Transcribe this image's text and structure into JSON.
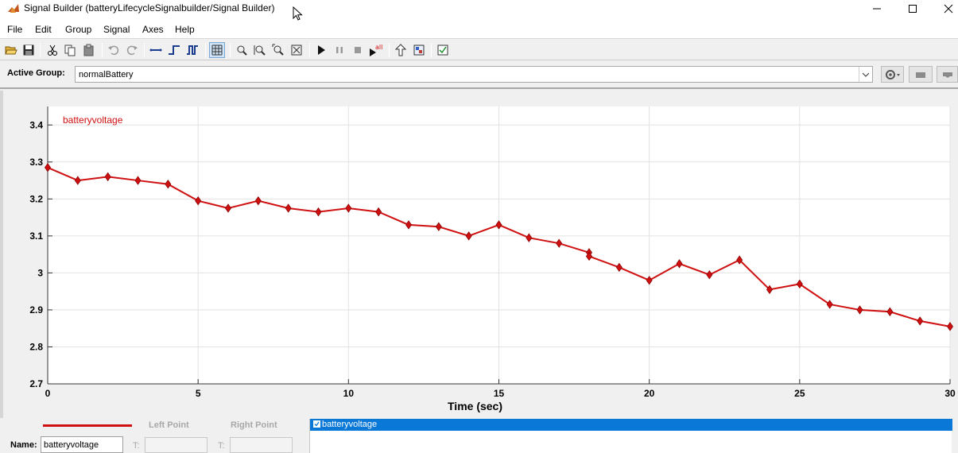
{
  "window": {
    "title": "Signal Builder (batteryLifecycleSignalbuilder/Signal Builder)"
  },
  "menu": [
    "File",
    "Edit",
    "Group",
    "Signal",
    "Axes",
    "Help"
  ],
  "group": {
    "label": "Active Group:",
    "selected": "normalBattery"
  },
  "bottom": {
    "left_point": "Left Point",
    "right_point": "Right Point",
    "name_label": "Name:",
    "name_value": "batteryvoltage",
    "t_label": "T:",
    "signal_list": [
      "batteryvoltage"
    ]
  },
  "colors": {
    "signal": "#d01010",
    "selection": "#0a78d7"
  },
  "chart_data": {
    "type": "line",
    "series": [
      {
        "name": "batteryvoltage",
        "x": [
          0,
          1,
          2,
          3,
          4,
          5,
          6,
          7,
          8,
          9,
          10,
          11,
          12,
          13,
          14,
          15,
          16,
          17,
          18,
          18,
          19,
          20,
          21,
          22,
          23,
          24,
          25,
          26,
          27,
          28,
          29,
          30
        ],
        "y": [
          3.285,
          3.25,
          3.26,
          3.25,
          3.24,
          3.195,
          3.175,
          3.195,
          3.175,
          3.165,
          3.175,
          3.165,
          3.13,
          3.125,
          3.1,
          3.13,
          3.095,
          3.08,
          3.055,
          3.045,
          3.015,
          2.98,
          3.025,
          2.995,
          3.035,
          2.955,
          2.97,
          2.915,
          2.9,
          2.895,
          2.87,
          2.855
        ]
      }
    ],
    "xlabel": "Time (sec)",
    "ylabel": "",
    "xlim": [
      0,
      30
    ],
    "ylim": [
      2.7,
      3.45
    ],
    "xticks": [
      0,
      5,
      10,
      15,
      20,
      25,
      30
    ],
    "xtick_labels": [
      "0",
      "5",
      "10",
      "15",
      "20",
      "25",
      "30"
    ],
    "yticks": [
      2.7,
      2.8,
      2.9,
      3.0,
      3.1,
      3.2,
      3.3,
      3.4
    ],
    "ytick_labels": [
      "2.7",
      "2.8",
      "2.9",
      "3",
      "3.1",
      "3.2",
      "3.3",
      "3.4"
    ],
    "grid": true
  }
}
